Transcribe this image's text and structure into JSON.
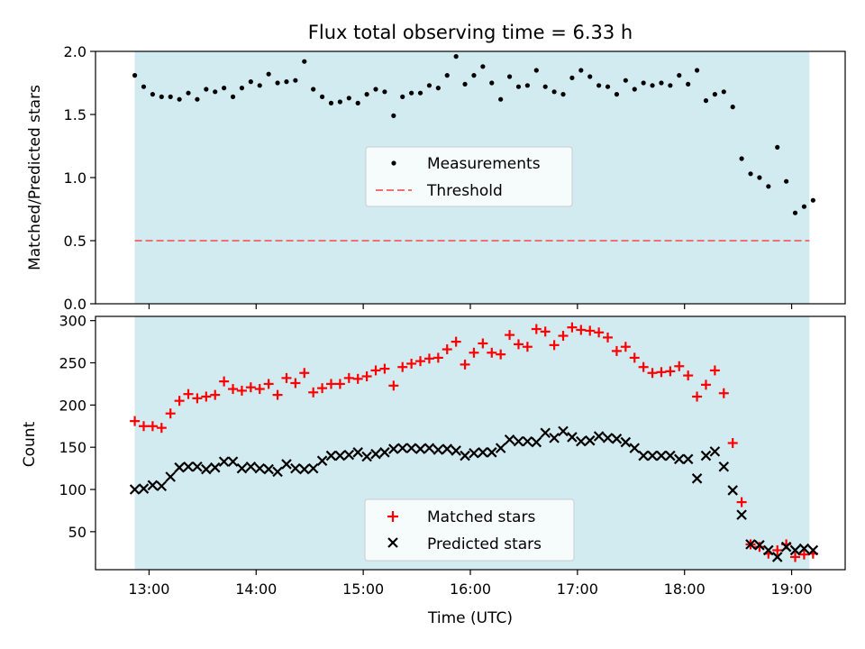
{
  "chart_data": [
    {
      "type": "scatter",
      "title": "Flux total observing time = 6.33 h",
      "xlabel": "",
      "ylabel": "Matched/Predicted stars",
      "xlim": [
        "12:30",
        "19:30"
      ],
      "ylim": [
        0,
        2.0
      ],
      "yticks": [
        "0.0",
        "0.5",
        "1.0",
        "1.5",
        "2.0"
      ],
      "grid": false,
      "shaded_span": [
        "12:52",
        "19:10"
      ],
      "shade_color": "#d2ebf1",
      "legend_position": "center",
      "series": [
        {
          "name": "Measurements",
          "marker": "dot",
          "color": "#000000",
          "x": [
            "12:52",
            "12:57",
            "13:02",
            "13:07",
            "13:12",
            "13:17",
            "13:22",
            "13:27",
            "13:32",
            "13:37",
            "13:42",
            "13:47",
            "13:52",
            "13:57",
            "14:02",
            "14:07",
            "14:12",
            "14:17",
            "14:22",
            "14:27",
            "14:32",
            "14:37",
            "14:42",
            "14:47",
            "14:52",
            "14:57",
            "15:02",
            "15:07",
            "15:12",
            "15:17",
            "15:22",
            "15:27",
            "15:32",
            "15:37",
            "15:42",
            "15:47",
            "15:52",
            "15:57",
            "16:02",
            "16:07",
            "16:12",
            "16:17",
            "16:22",
            "16:27",
            "16:32",
            "16:37",
            "16:42",
            "16:47",
            "16:52",
            "16:57",
            "17:02",
            "17:07",
            "17:12",
            "17:17",
            "17:22",
            "17:27",
            "17:32",
            "17:37",
            "17:42",
            "17:47",
            "17:52",
            "17:57",
            "18:02",
            "18:07",
            "18:12",
            "18:17",
            "18:22",
            "18:27",
            "18:32",
            "18:37",
            "18:42",
            "18:47",
            "18:52",
            "18:57",
            "19:02",
            "19:07",
            "19:12"
          ],
          "y": [
            1.81,
            1.72,
            1.66,
            1.64,
            1.64,
            1.62,
            1.67,
            1.62,
            1.7,
            1.68,
            1.71,
            1.64,
            1.71,
            1.76,
            1.73,
            1.82,
            1.75,
            1.76,
            1.77,
            1.92,
            1.7,
            1.64,
            1.59,
            1.6,
            1.63,
            1.59,
            1.66,
            1.7,
            1.68,
            1.49,
            1.64,
            1.67,
            1.67,
            1.73,
            1.71,
            1.81,
            1.96,
            1.74,
            1.81,
            1.88,
            1.75,
            1.62,
            1.8,
            1.72,
            1.73,
            1.85,
            1.72,
            1.68,
            1.66,
            1.79,
            1.85,
            1.8,
            1.73,
            1.72,
            1.66,
            1.77,
            1.7,
            1.75,
            1.73,
            1.75,
            1.73,
            1.81,
            1.74,
            1.85,
            1.61,
            1.66,
            1.68,
            1.56,
            1.15,
            1.03,
            1.0,
            0.93,
            1.24,
            0.97,
            0.72,
            0.77,
            0.82
          ]
        },
        {
          "name": "Threshold",
          "style": "dashed",
          "color": "#f07070",
          "x": [
            "12:52",
            "19:10"
          ],
          "y": [
            0.5,
            0.5
          ]
        }
      ]
    },
    {
      "type": "scatter",
      "title": "",
      "xlabel": "Time (UTC)",
      "ylabel": "Count",
      "xlim": [
        "12:30",
        "19:30"
      ],
      "ylim": [
        5,
        305
      ],
      "xticks": [
        "13:00",
        "14:00",
        "15:00",
        "16:00",
        "17:00",
        "18:00",
        "19:00"
      ],
      "yticks": [
        "50",
        "100",
        "150",
        "200",
        "250",
        "300"
      ],
      "grid": false,
      "shaded_span": [
        "12:52",
        "19:10"
      ],
      "shade_color": "#d2ebf1",
      "legend_position": "lower center",
      "series": [
        {
          "name": "Matched stars",
          "marker": "plus",
          "color": "#ff0000",
          "x": [
            "12:52",
            "12:57",
            "13:02",
            "13:07",
            "13:12",
            "13:17",
            "13:22",
            "13:27",
            "13:32",
            "13:37",
            "13:42",
            "13:47",
            "13:52",
            "13:57",
            "14:02",
            "14:07",
            "14:12",
            "14:17",
            "14:22",
            "14:27",
            "14:32",
            "14:37",
            "14:42",
            "14:47",
            "14:52",
            "14:57",
            "15:02",
            "15:07",
            "15:12",
            "15:17",
            "15:22",
            "15:27",
            "15:32",
            "15:37",
            "15:42",
            "15:47",
            "15:52",
            "15:57",
            "16:02",
            "16:07",
            "16:12",
            "16:17",
            "16:22",
            "16:27",
            "16:32",
            "16:37",
            "16:42",
            "16:47",
            "16:52",
            "16:57",
            "17:02",
            "17:07",
            "17:12",
            "17:17",
            "17:22",
            "17:27",
            "17:32",
            "17:37",
            "17:42",
            "17:47",
            "17:52",
            "17:57",
            "18:02",
            "18:07",
            "18:12",
            "18:17",
            "18:22",
            "18:27",
            "18:32",
            "18:37",
            "18:42",
            "18:47",
            "18:52",
            "18:57",
            "19:02",
            "19:07",
            "19:12"
          ],
          "y": [
            181,
            175,
            175,
            173,
            190,
            205,
            213,
            208,
            210,
            212,
            228,
            219,
            217,
            221,
            219,
            225,
            212,
            232,
            226,
            238,
            215,
            220,
            225,
            225,
            232,
            231,
            234,
            241,
            243,
            223,
            245,
            249,
            252,
            255,
            256,
            266,
            275,
            248,
            262,
            273,
            262,
            260,
            283,
            272,
            269,
            290,
            287,
            271,
            282,
            292,
            289,
            288,
            286,
            280,
            264,
            269,
            256,
            245,
            238,
            239,
            240,
            246,
            235,
            210,
            224,
            241,
            214,
            155,
            85,
            35,
            32,
            24,
            28,
            35,
            20,
            23,
            24
          ]
        },
        {
          "name": "Predicted stars",
          "marker": "x",
          "color": "#000000",
          "x": [
            "12:52",
            "12:57",
            "13:02",
            "13:07",
            "13:12",
            "13:17",
            "13:22",
            "13:27",
            "13:32",
            "13:37",
            "13:42",
            "13:47",
            "13:52",
            "13:57",
            "14:02",
            "14:07",
            "14:12",
            "14:17",
            "14:22",
            "14:27",
            "14:32",
            "14:37",
            "14:42",
            "14:47",
            "14:52",
            "14:57",
            "15:02",
            "15:07",
            "15:12",
            "15:17",
            "15:22",
            "15:27",
            "15:32",
            "15:37",
            "15:42",
            "15:47",
            "15:52",
            "15:57",
            "16:02",
            "16:07",
            "16:12",
            "16:17",
            "16:22",
            "16:27",
            "16:32",
            "16:37",
            "16:42",
            "16:47",
            "16:52",
            "16:57",
            "17:02",
            "17:07",
            "17:12",
            "17:17",
            "17:22",
            "17:27",
            "17:32",
            "17:37",
            "17:42",
            "17:47",
            "17:52",
            "17:57",
            "18:02",
            "18:07",
            "18:12",
            "18:17",
            "18:22",
            "18:27",
            "18:32",
            "18:37",
            "18:42",
            "18:47",
            "18:52",
            "18:57",
            "19:02",
            "19:07",
            "19:12"
          ],
          "y": [
            100,
            101,
            105,
            104,
            115,
            126,
            127,
            127,
            124,
            126,
            133,
            133,
            125,
            127,
            125,
            124,
            121,
            130,
            125,
            124,
            125,
            134,
            140,
            140,
            141,
            144,
            139,
            142,
            144,
            148,
            149,
            149,
            148,
            149,
            147,
            148,
            146,
            140,
            143,
            144,
            144,
            149,
            159,
            157,
            157,
            156,
            167,
            161,
            169,
            162,
            157,
            158,
            163,
            161,
            160,
            156,
            149,
            140,
            140,
            140,
            140,
            136,
            136,
            113,
            140,
            145,
            127,
            99,
            70,
            35,
            34,
            28,
            20,
            32,
            28,
            30,
            28
          ]
        }
      ]
    }
  ]
}
